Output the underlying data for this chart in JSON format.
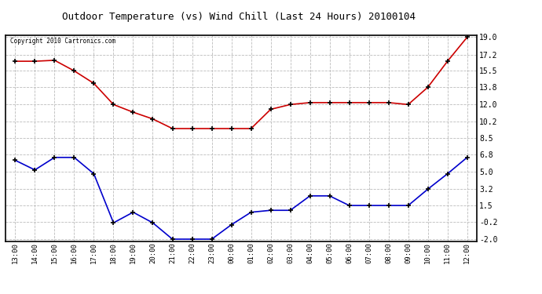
{
  "title": "Outdoor Temperature (vs) Wind Chill (Last 24 Hours) 20100104",
  "copyright": "Copyright 2010 Cartronics.com",
  "x_labels": [
    "13:00",
    "14:00",
    "15:00",
    "16:00",
    "17:00",
    "18:00",
    "19:00",
    "20:00",
    "21:00",
    "22:00",
    "23:00",
    "00:00",
    "01:00",
    "02:00",
    "03:00",
    "04:00",
    "05:00",
    "06:00",
    "07:00",
    "08:00",
    "09:00",
    "10:00",
    "11:00",
    "12:00"
  ],
  "temp_data": [
    16.5,
    16.5,
    16.6,
    15.5,
    14.2,
    12.0,
    11.2,
    10.5,
    9.5,
    9.5,
    9.5,
    9.5,
    9.5,
    11.5,
    12.0,
    12.2,
    12.2,
    12.2,
    12.2,
    12.2,
    12.0,
    13.8,
    16.5,
    19.0
  ],
  "wind_chill_data": [
    6.2,
    5.2,
    6.5,
    6.5,
    4.8,
    -0.3,
    0.8,
    -0.3,
    -2.0,
    -2.0,
    -2.0,
    -0.5,
    0.8,
    1.0,
    1.0,
    2.5,
    2.5,
    1.5,
    1.5,
    1.5,
    1.5,
    3.2,
    4.8,
    6.5
  ],
  "temp_color": "#cc0000",
  "wind_color": "#0000cc",
  "ylim_min": -2.0,
  "ylim_max": 19.0,
  "yticks": [
    19.0,
    17.2,
    15.5,
    13.8,
    12.0,
    10.2,
    8.5,
    6.8,
    5.0,
    3.2,
    1.5,
    -0.2,
    -2.0
  ],
  "grid_color": "#bbbbbb",
  "bg_color": "#ffffff",
  "plot_bg_color": "#ffffff"
}
